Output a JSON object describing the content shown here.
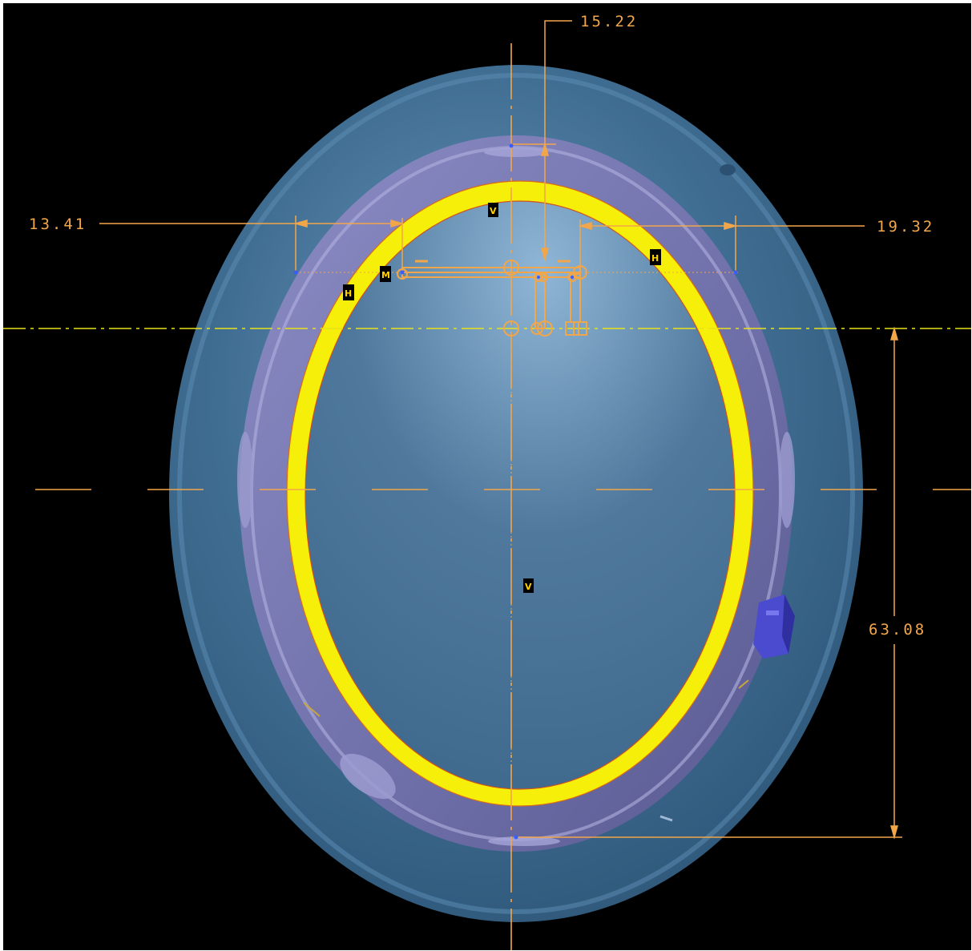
{
  "viewport": {
    "background": "#000000"
  },
  "colors": {
    "outer_shell": "#3d6a8c",
    "inner_band": "#7b7bb0",
    "yellow_ring": "#f6ef0a",
    "inner_surface": "#4f789c",
    "dimension": "#f2a64a",
    "centerline_h": "#e8e21a"
  },
  "dimensions": {
    "top": "15.22",
    "left": "13.41",
    "right": "19.32",
    "vertical": "63.08"
  },
  "constraints": {
    "v_top": "V",
    "v_center": "V",
    "h_left": "H",
    "h_right": "H",
    "m_left": "M"
  },
  "icons": {
    "clip_icon": "side-clip-icon"
  }
}
